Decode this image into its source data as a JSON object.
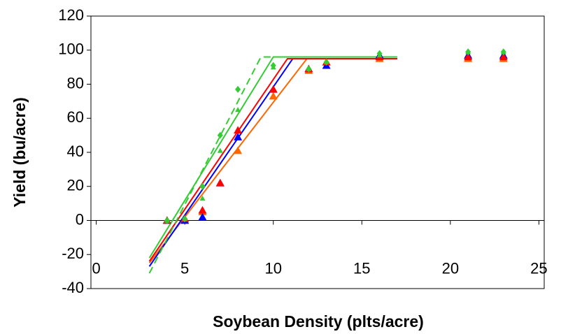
{
  "chart_data": {
    "type": "scatter",
    "x_label": "Soybean Density (plts/acre)",
    "y_label": "Yield (bu/acre)",
    "xlim": [
      -0.3,
      25.3
    ],
    "xticks": [
      0,
      5,
      10,
      15,
      20,
      25
    ],
    "ylim": [
      -40,
      120
    ],
    "yticks": [
      -40,
      -20,
      0,
      20,
      40,
      60,
      80,
      100,
      120
    ],
    "series": [
      {
        "color": "#ff6600",
        "marker": "triangle",
        "x": [
          4,
          5,
          6,
          7,
          8,
          10,
          12,
          13,
          16,
          21,
          23
        ],
        "values": [
          0,
          0,
          5,
          22,
          41,
          73,
          88,
          93,
          95,
          95,
          95
        ]
      },
      {
        "color": "#0000ff",
        "marker": "triangle",
        "x": [
          4,
          5,
          6,
          7,
          8,
          10,
          12,
          13,
          16,
          21,
          23
        ],
        "values": [
          0,
          0,
          2,
          22,
          49,
          77,
          89,
          91,
          97,
          97,
          97
        ]
      },
      {
        "color": "#ff0000",
        "marker": "triangle",
        "x": [
          4,
          5,
          6,
          7,
          8,
          10,
          12,
          13,
          16,
          21,
          23
        ],
        "values": [
          0,
          1,
          6,
          22,
          53,
          77,
          89,
          93,
          96,
          96,
          96
        ]
      },
      {
        "color": "#33cc33",
        "marker": "small-triangle",
        "x": [
          4,
          5,
          6,
          7,
          8,
          10,
          12,
          13,
          16,
          21,
          23
        ],
        "values": [
          0,
          1,
          13,
          41,
          65,
          90,
          89,
          93,
          97,
          99,
          99
        ]
      },
      {
        "color": "#33cc33",
        "marker": "diamond",
        "x": [
          4,
          5,
          6,
          7,
          8,
          10,
          12,
          13,
          16,
          21,
          23
        ],
        "values": [
          0,
          1,
          20,
          50,
          77,
          91,
          89,
          93,
          98,
          99,
          99
        ]
      }
    ],
    "fits": [
      {
        "color": "#ff6600",
        "dash": false,
        "x": [
          3.0,
          11.9,
          17
        ],
        "values": [
          -25,
          95,
          95
        ]
      },
      {
        "color": "#0000ff",
        "dash": false,
        "x": [
          3.0,
          11.1,
          17
        ],
        "values": [
          -27,
          95,
          95
        ]
      },
      {
        "color": "#ff0000",
        "dash": false,
        "x": [
          3.0,
          10.8,
          17
        ],
        "values": [
          -24,
          95,
          95
        ]
      },
      {
        "color": "#33cc33",
        "dash": false,
        "x": [
          3.0,
          10.0,
          17
        ],
        "values": [
          -22,
          96,
          96
        ]
      },
      {
        "color": "#33cc33",
        "dash": true,
        "x": [
          3.0,
          9.3,
          11.9
        ],
        "values": [
          -31,
          96,
          96
        ]
      }
    ]
  }
}
